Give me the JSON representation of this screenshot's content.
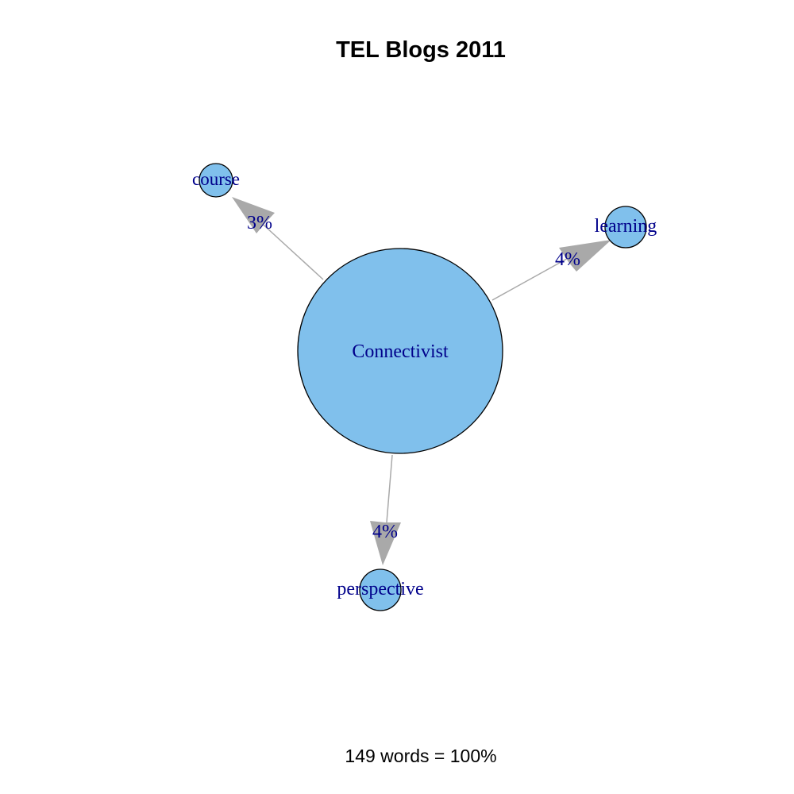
{
  "title": "TEL Blogs 2011",
  "caption": "149 words = 100%",
  "colors": {
    "node_fill": "#80c0ec",
    "node_stroke": "#000000",
    "label_color": "#00008b",
    "edge_color": "#a9a9a9"
  },
  "nodes": [
    {
      "id": "center",
      "label": "Connectivist"
    },
    {
      "id": "course",
      "label": "course"
    },
    {
      "id": "learning",
      "label": "learning"
    },
    {
      "id": "perspective",
      "label": "perspective"
    }
  ],
  "edges": [
    {
      "from": "center",
      "to": "course",
      "label": "3%"
    },
    {
      "from": "center",
      "to": "learning",
      "label": "4%"
    },
    {
      "from": "center",
      "to": "perspective",
      "label": "4%"
    }
  ]
}
